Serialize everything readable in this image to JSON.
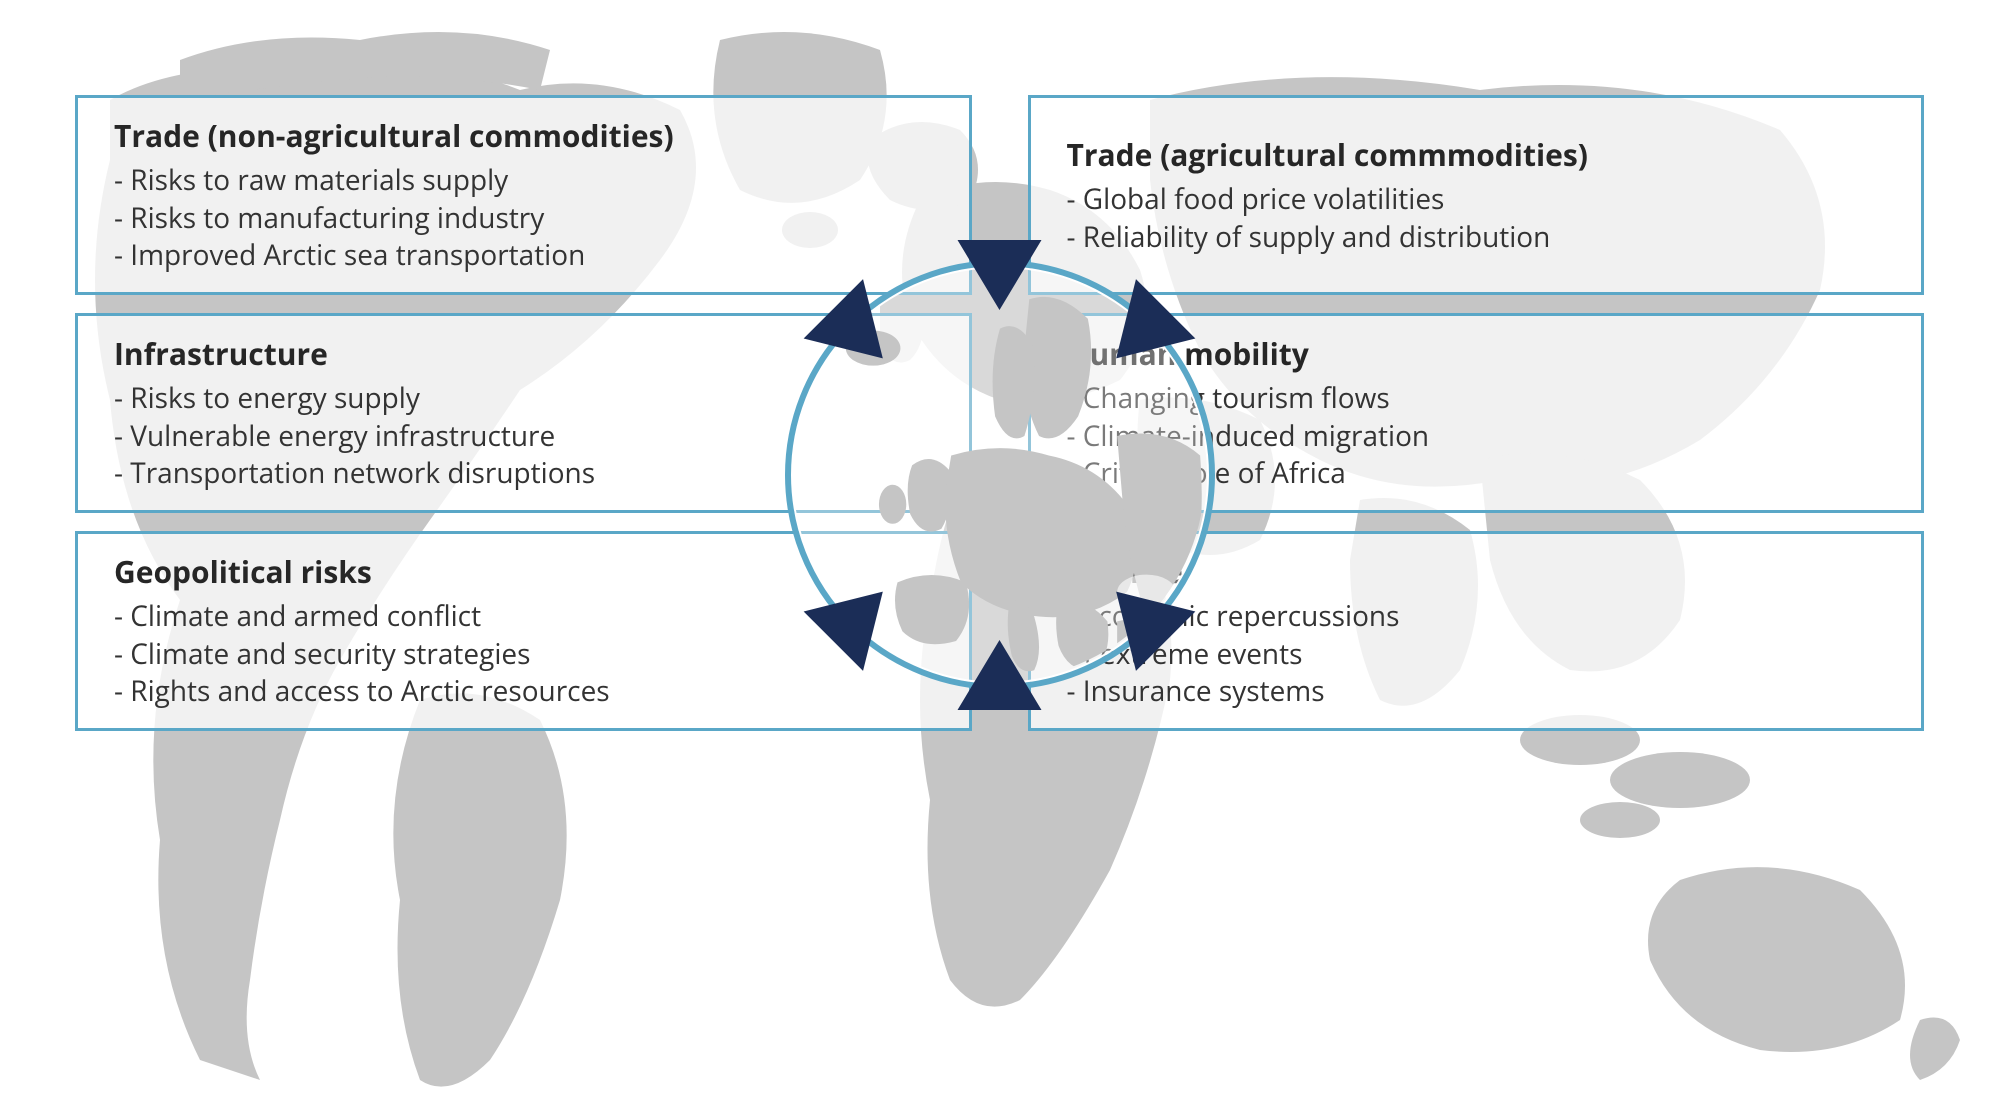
{
  "diagram": {
    "type": "infographic",
    "background_color": "#ffffff",
    "map_fill": "#c5c5c5",
    "box_border": "#5aa7c7",
    "box_background": "rgba(255,255,255,0.75)",
    "arrow_color": "#1b2d57",
    "circle_border": "#5aa7c7",
    "title_color": "#262626",
    "text_color": "#333333",
    "title_fontsize": 30,
    "text_fontsize": 28,
    "boxes": [
      {
        "id": "trade-non-ag",
        "title": "Trade (non-agricultural commodities)",
        "items": [
          "- Risks to raw materials supply",
          "- Risks to manufacturing industry",
          "- Improved Arctic sea transportation"
        ]
      },
      {
        "id": "trade-ag",
        "title": "Trade (agricultural commmodities)",
        "items": [
          "- Global food price volatilities",
          "- Reliability of supply and distribution"
        ]
      },
      {
        "id": "infrastructure",
        "title": "Infrastructure",
        "items": [
          "- Risks to energy supply",
          "- Vulnerable energy infrastructure",
          "- Transportation network disruptions"
        ]
      },
      {
        "id": "human-mobility",
        "title": "Human mobility",
        "items": [
          "- Changing tourism flows",
          "- Climate-induced migration",
          "- Critical role of Africa"
        ]
      },
      {
        "id": "geopolitical",
        "title": "Geopolitical risks",
        "items": [
          "- Climate and armed conflict",
          "- Climate and security strategies",
          "- Rights and access to Arctic resources"
        ]
      },
      {
        "id": "finance",
        "title": "Finance",
        "items": [
          "- Economic repercussions\n  of extreme events",
          "- Insurance systems"
        ]
      }
    ],
    "arrows": [
      {
        "angle_deg": 225,
        "from": "trade-non-ag"
      },
      {
        "angle_deg": 135,
        "from": "trade-ag"
      },
      {
        "angle_deg": 270,
        "from": "infrastructure"
      },
      {
        "angle_deg": 90,
        "from": "human-mobility"
      },
      {
        "angle_deg": 315,
        "from": "geopolitical"
      },
      {
        "angle_deg": 45,
        "from": "finance"
      }
    ]
  }
}
